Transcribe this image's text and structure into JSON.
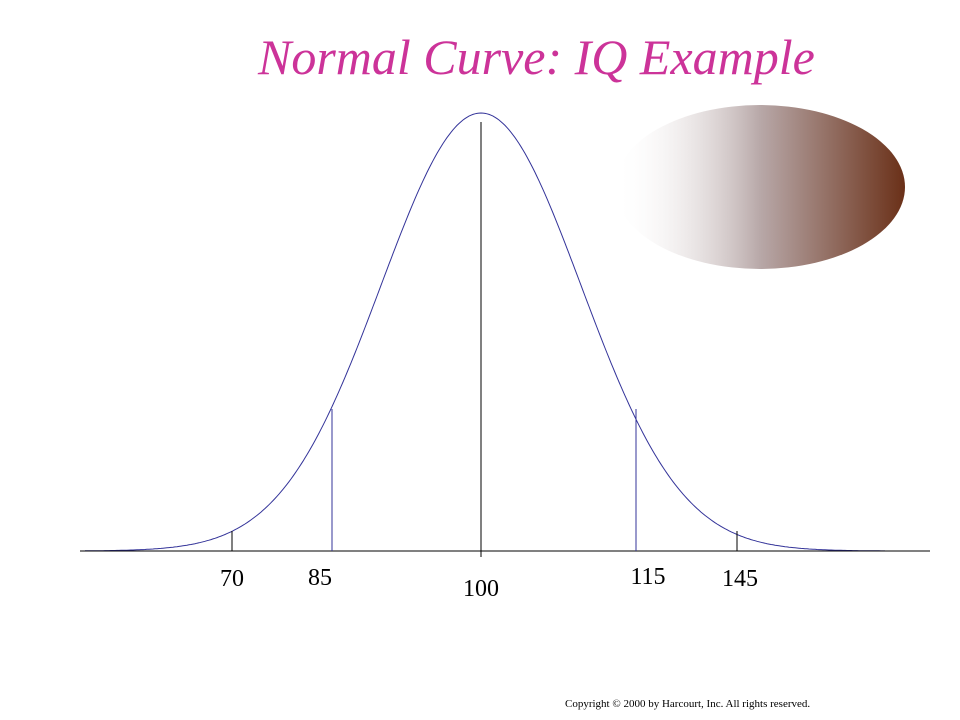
{
  "title": "Normal Curve: IQ Example",
  "labels": [
    "70",
    "85",
    "100",
    "115",
    "145"
  ],
  "copyright": "Copyright © 2000 by Harcourt, Inc.  All rights reserved."
}
